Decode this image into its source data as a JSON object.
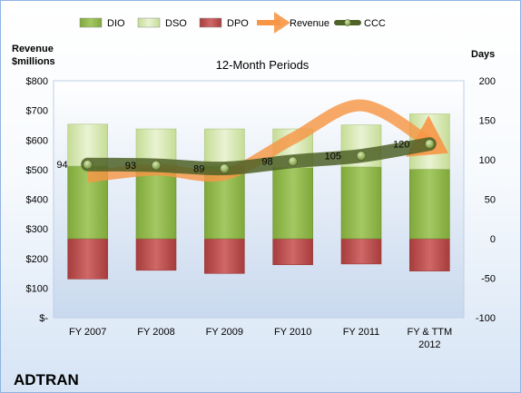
{
  "company": "ADTRAN",
  "chart_data": {
    "type": "bar",
    "title": "12-Month Periods",
    "y_left_label_line1": "Revenue",
    "y_left_label_line2": "$millions",
    "y_right_label": "Days",
    "y_left_ticks": [
      "$-",
      "$100",
      "$200",
      "$300",
      "$400",
      "$500",
      "$600",
      "$700",
      "$800"
    ],
    "y_left_lim": [
      0,
      800
    ],
    "y_right_ticks": [
      "-100",
      "-50",
      "0",
      "50",
      "100",
      "150",
      "200"
    ],
    "y_right_lim": [
      -100,
      200
    ],
    "grid": false,
    "legend_position": "top",
    "categories": [
      "FY 2007",
      "FY 2008",
      "FY 2009",
      "FY 2010",
      "FY 2011",
      "FY & TTM 2012"
    ],
    "series": [
      {
        "name": "DIO",
        "values": [
          92,
          90,
          92,
          90,
          91,
          88
        ],
        "color": "#8db34a",
        "axis": "right"
      },
      {
        "name": "DSO",
        "values": [
          53,
          49,
          47,
          49,
          53,
          70
        ],
        "color": "#d7e8b0",
        "axis": "right"
      },
      {
        "name": "DPO",
        "values": [
          -51,
          -40,
          -44,
          -33,
          -32,
          -41
        ],
        "color": "#b94a4a",
        "axis": "right"
      },
      {
        "name": "Revenue",
        "values": [
          476,
          500,
          484,
          605,
          717,
          590
        ],
        "color": "#f79646",
        "axis": "left"
      },
      {
        "name": "CCC",
        "values": [
          94,
          93,
          89,
          98,
          105,
          120
        ],
        "color": "#4f6228",
        "axis": "right"
      }
    ]
  }
}
